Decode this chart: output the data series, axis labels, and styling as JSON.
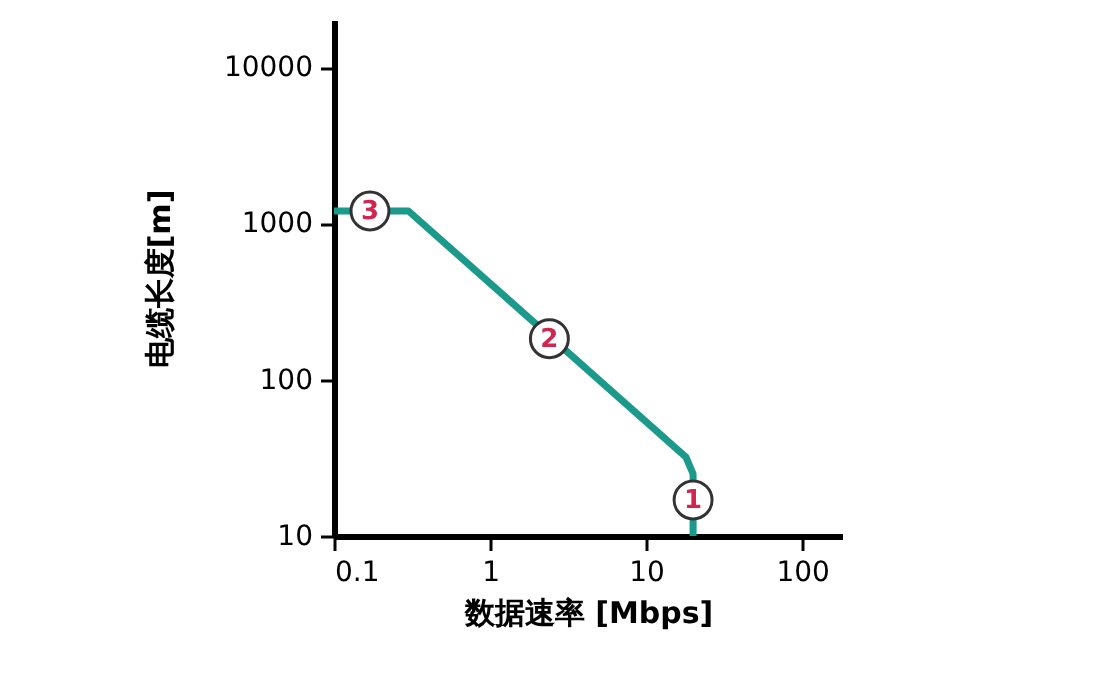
{
  "chart_data": {
    "type": "line",
    "xlabel": "数据速率 [Mbps]",
    "ylabel": "电缆长度[m]",
    "log": "xy",
    "grid": false,
    "marker": "none",
    "line_style": "solid",
    "xlim": [
      0.1,
      180
    ],
    "xticks": [
      0.1,
      1,
      10,
      100
    ],
    "ylim": [
      10,
      20000
    ],
    "yticks": [
      10,
      100,
      1000,
      10000
    ],
    "series": [
      {
        "color": "#1b9a8c",
        "x": [
          0.1,
          0.3,
          18,
          20,
          20
        ],
        "values": [
          1200,
          1200,
          32,
          25,
          10
        ]
      }
    ],
    "annotations": [
      {
        "text": "1",
        "x": 20,
        "y": 17
      },
      {
        "text": "2",
        "x": 2.4,
        "y": 183
      },
      {
        "text": "3",
        "x": 0.17,
        "y": 1200
      }
    ]
  }
}
